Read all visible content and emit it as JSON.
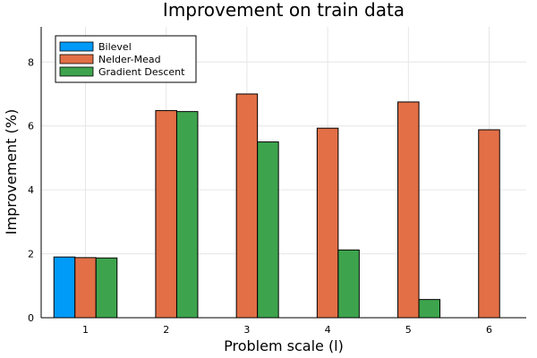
{
  "chart_data": {
    "type": "bar",
    "title": "Improvement on train data",
    "xlabel": "Problem scale (l)",
    "ylabel": "Improvement (%)",
    "categories": [
      "1",
      "2",
      "3",
      "4",
      "5",
      "6"
    ],
    "yticks": [
      "0",
      "2",
      "4",
      "6",
      "8"
    ],
    "ylim": [
      0,
      9.1
    ],
    "grid": true,
    "legend_position": "top-left",
    "series": [
      {
        "name": "Bilevel",
        "color": "#009af9",
        "values": [
          1.9,
          null,
          null,
          null,
          null,
          null
        ]
      },
      {
        "name": "Nelder-Mead",
        "color": "#e26f46",
        "values": [
          1.88,
          6.48,
          7.0,
          5.93,
          6.75,
          5.88
        ]
      },
      {
        "name": "Gradient Descent",
        "color": "#3da44d",
        "values": [
          1.87,
          6.45,
          5.5,
          2.12,
          0.57,
          null
        ]
      }
    ]
  }
}
